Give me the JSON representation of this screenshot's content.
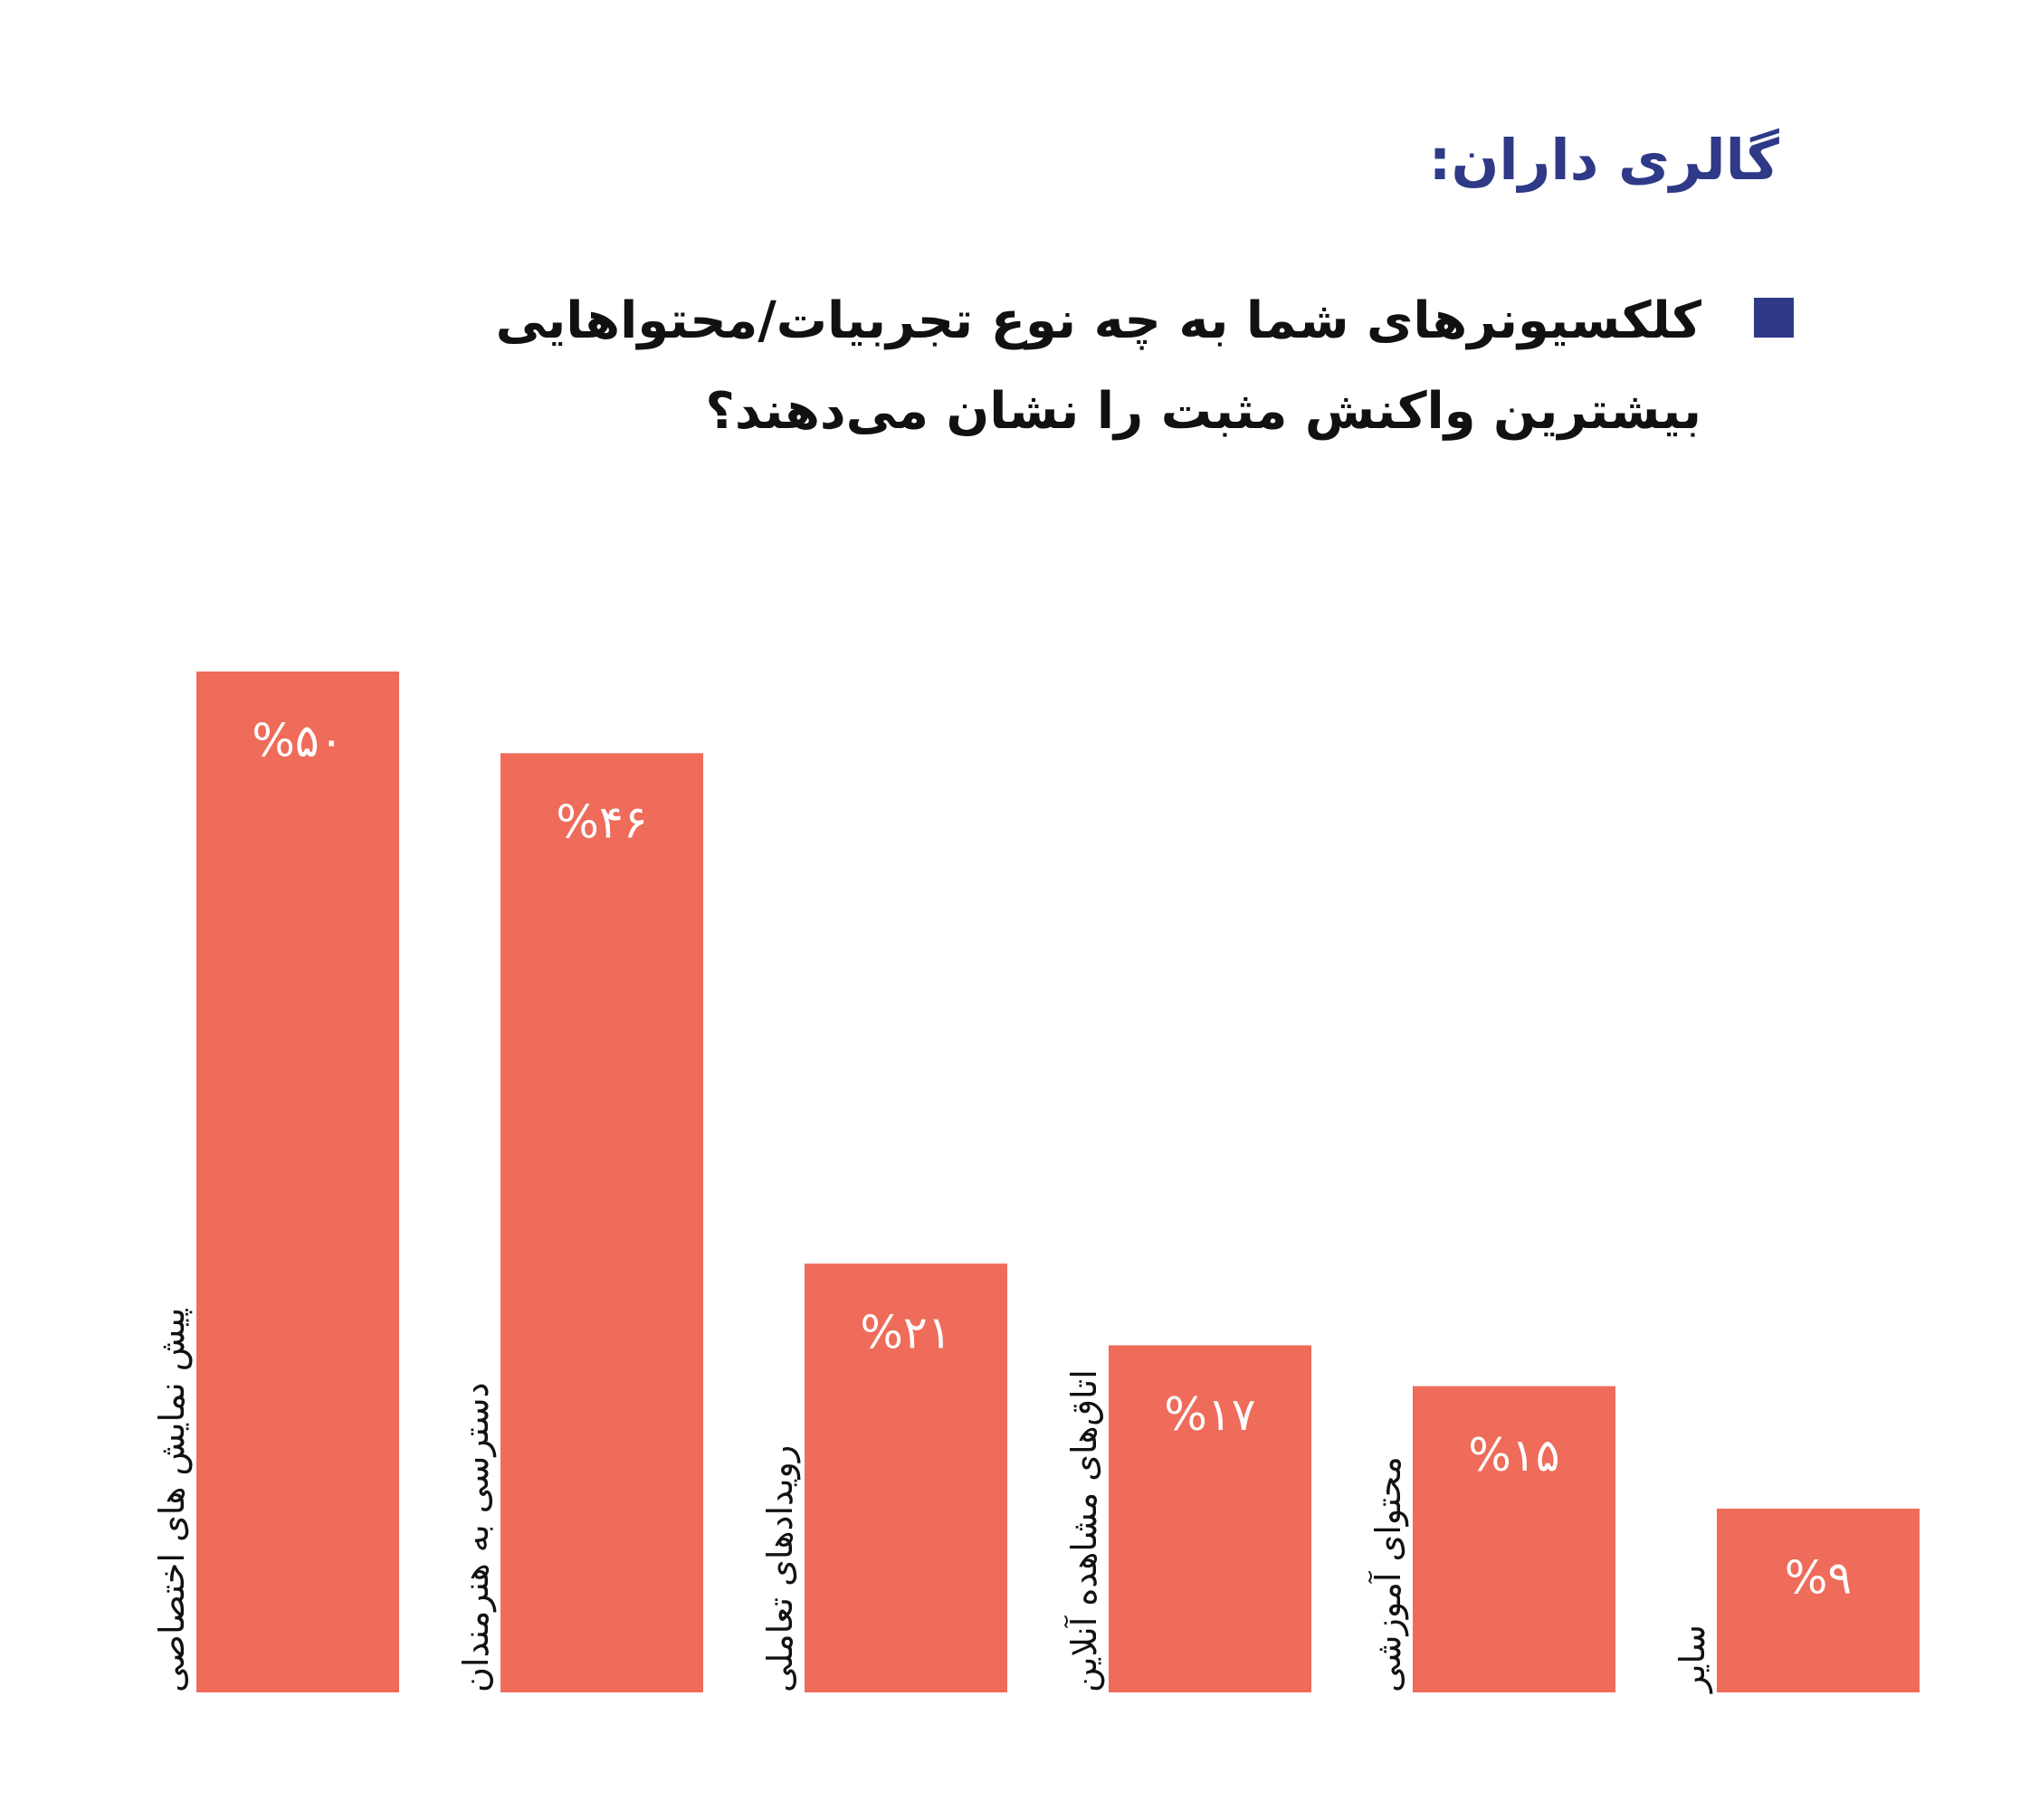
{
  "chart_data": {
    "type": "bar",
    "title": "گالری داران:",
    "subtitle": "کلکسیونرهای شما به چه نوع تجربیات/محتواهایی بیشترین واکنش مثبت را نشان می‌دهند؟",
    "categories": [
      "پیش نمایش های اختصاصی",
      "دسترسی به هنرمندان",
      "رویدادهای تعاملی",
      "اتاق‌های مشاهده آنلاین",
      "محتوای آموزشی",
      "سایر"
    ],
    "values": [
      50,
      46,
      21,
      17,
      15,
      9
    ],
    "value_labels": [
      "%۵۰",
      "%۴۶",
      "%۲۱",
      "%۱۷",
      "%۱۵",
      "%۹"
    ],
    "color": "#ef6b5a",
    "ylim": [
      0,
      50
    ]
  }
}
